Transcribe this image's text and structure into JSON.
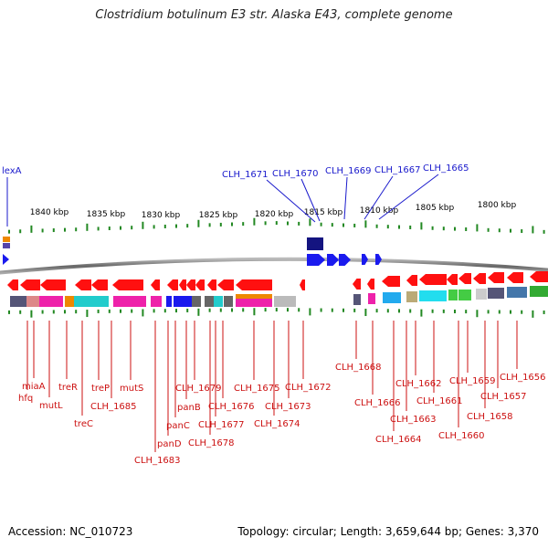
{
  "title": "Clostridium botulinum E3 str. Alaska E43, complete genome",
  "footer": {
    "accession": "Accession: NC_010723",
    "stats": "Topology: circular; Length: 3,659,644 bp; Genes: 3,370"
  },
  "colors": {
    "label_top": "#1a1acc",
    "label_bottom": "#cc1111",
    "tick": "#228822",
    "backbone": "#888888",
    "gene_arrow": "#ff1010"
  },
  "scale": {
    "unit": "kbp",
    "labels": [
      "1840 kbp",
      "1835 kbp",
      "1830 kbp",
      "1825 kbp",
      "1820 kbp",
      "1815 kbp",
      "1810 kbp",
      "1805 kbp",
      "1800 kbp"
    ]
  },
  "top_gene_labels": [
    "lexA",
    "CLH_1671",
    "CLH_1670",
    "CLH_1669",
    "CLH_1667",
    "CLH_1665"
  ],
  "bottom_gene_labels": [
    "miaA",
    "hfq",
    "mutL",
    "treR",
    "treC",
    "treP",
    "CLH_1685",
    "mutS",
    "CLH_1683",
    "panD",
    "panC",
    "panB",
    "CLH_1679",
    "CLH_1678",
    "CLH_1677",
    "CLH_1676",
    "CLH_1675",
    "CLH_1674",
    "CLH_1673",
    "CLH_1672",
    "CLH_1668",
    "CLH_1666",
    "CLH_1664",
    "CLH_1663",
    "CLH_1662",
    "CLH_1661",
    "CLH_1660",
    "CLH_1659",
    "CLH_1658",
    "CLH_1657",
    "CLH_1656"
  ]
}
